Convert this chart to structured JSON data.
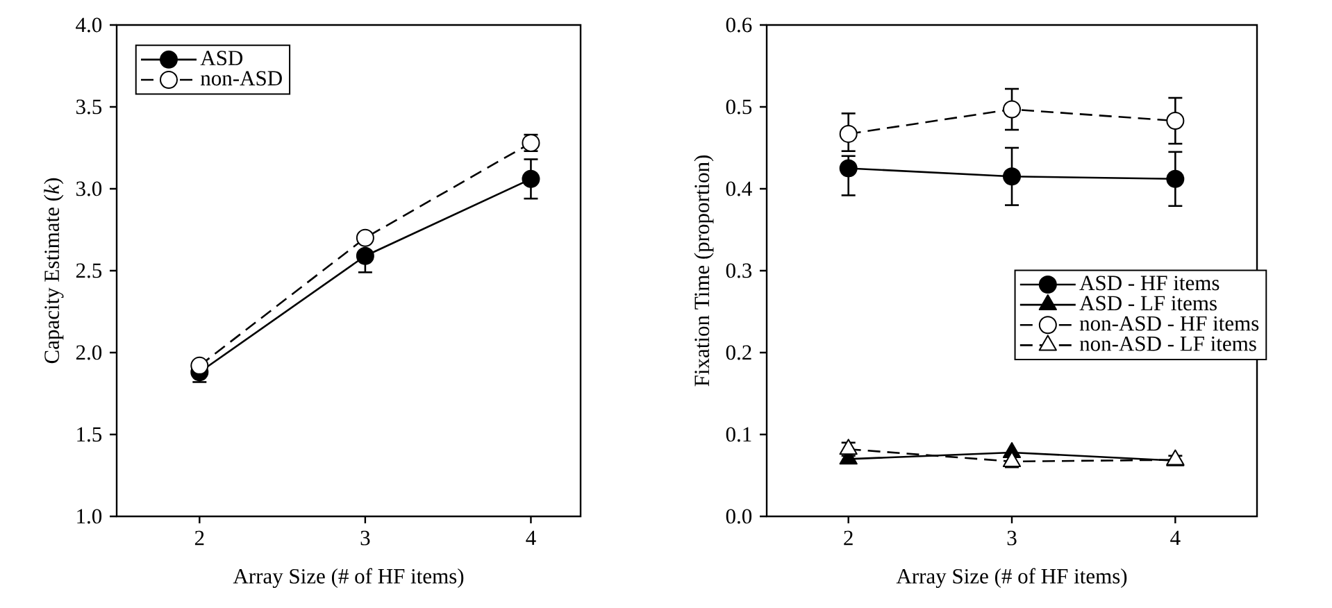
{
  "chart_data": [
    {
      "type": "line",
      "xlabel": "Array Size (# of HF items)",
      "ylabel": "Capacity Estimate (*k*)",
      "x": [
        2,
        3,
        4
      ],
      "xlim": [
        1.5,
        4.3
      ],
      "ylim": [
        1,
        4
      ],
      "xticks": [
        2,
        3,
        4
      ],
      "yticks": [
        {
          "value": 1,
          "label": "1.0"
        },
        {
          "value": 1.5,
          "label": "1.5"
        },
        {
          "value": 2,
          "label": "2.0"
        },
        {
          "value": 2.5,
          "label": "2.5"
        },
        {
          "value": 3,
          "label": "3.0"
        },
        {
          "value": 3.5,
          "label": "3.5"
        },
        {
          "value": 4,
          "label": "4.0"
        }
      ],
      "legend": "top left",
      "series": [
        {
          "name": "ASD",
          "color": "#000000",
          "values": [
            1.88,
            2.59,
            3.06
          ],
          "errors": [
            0.06,
            [
              2.49,
              2.59
            ],
            0.12
          ],
          "marker": "circle",
          "line_style": "solid"
        },
        {
          "name": "non-ASD",
          "color": "#000000",
          "values": [
            1.92,
            2.7,
            3.28
          ],
          "errors": [
            0.03,
            0.03,
            0.05
          ],
          "marker": "circle",
          "line_style": "dashed"
        }
      ]
    },
    {
      "type": "line",
      "xlabel": "Array Size (# of HF items)",
      "ylabel": "Fixation Time (proportion)",
      "x": [
        2,
        3,
        4
      ],
      "xlim": [
        1.5,
        4.5
      ],
      "ylim": [
        0,
        0.6
      ],
      "xticks": [
        2,
        3,
        4
      ],
      "yticks": [
        {
          "value": 0,
          "label": "0.0"
        },
        {
          "value": 0.1,
          "label": "0.1"
        },
        {
          "value": 0.2,
          "label": "0.2"
        },
        {
          "value": 0.3,
          "label": "0.3"
        },
        {
          "value": 0.4,
          "label": "0.4"
        },
        {
          "value": 0.5,
          "label": "0.5"
        },
        {
          "value": 0.6,
          "label": "0.6"
        }
      ],
      "legend": "right",
      "series": [
        {
          "name": "ASD - HF items",
          "color": "#000000",
          "values": [
            0.425,
            0.415,
            0.412
          ],
          "errors": [
            [
              0.392,
              0.44
            ],
            0.035,
            0.033
          ],
          "marker": "circle",
          "line_style": "solid"
        },
        {
          "name": "ASD - LF items",
          "color": "#000000",
          "values": [
            0.07,
            0.078,
            0.068
          ],
          "marker": "triangle",
          "line_style": "solid"
        },
        {
          "name": "non-ASD - HF items",
          "color": "#000000",
          "values": [
            0.467,
            0.497,
            0.483
          ],
          "errors": [
            [
              0.446,
              0.492
            ],
            0.025,
            0.028
          ],
          "marker": "circle",
          "line_style": "dashed"
        },
        {
          "name": "non-ASD - LF items",
          "color": "#000000",
          "values": [
            0.082,
            0.067,
            0.069
          ],
          "errors": [
            0.008,
            0.007,
            0.005
          ],
          "marker": "triangle",
          "line_style": "dashed"
        }
      ]
    }
  ]
}
